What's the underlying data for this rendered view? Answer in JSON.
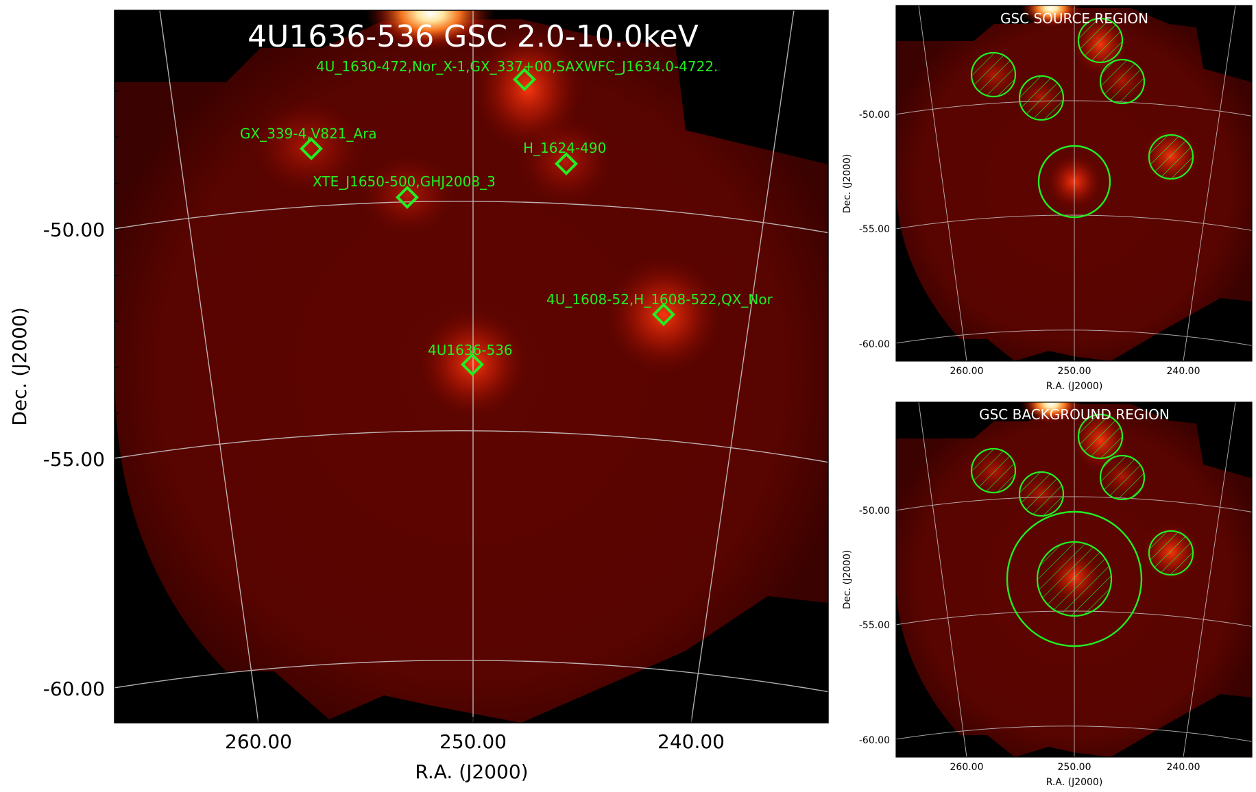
{
  "colors": {
    "background": "#000000",
    "field_fill": "#5a0400",
    "field_edge": "#3a0200",
    "glow_core": "#fff3c0",
    "glow_mid": "#e83a10",
    "marker": "#22ee22",
    "grid": "#cfcfcf",
    "title_text": "#ffffff",
    "axis_text": "#000000"
  },
  "main_panel": {
    "title": "4U1636-536 GSC 2.0-10.0keV",
    "xlabel": "R.A. (J2000)",
    "ylabel": "Dec. (J2000)",
    "xticks": [
      "260.00",
      "250.00",
      "240.00"
    ],
    "yticks": [
      "-50.00",
      "-55.00",
      "-60.00"
    ],
    "sources": [
      {
        "label": "4U_1630-472,Nor_X-1,GX_337+00,SAXWFC_J1634.0-4722."
      },
      {
        "label": "GX_339-4,V821_Ara"
      },
      {
        "label": "H_1624-490"
      },
      {
        "label": "XTE_J1650-500,GHJ2008_3"
      },
      {
        "label": "4U_1608-52,H_1608-522,QX_Nor"
      },
      {
        "label": "4U1636-536"
      }
    ]
  },
  "source_panel": {
    "title": "GSC SOURCE REGION",
    "xlabel": "R.A. (J2000)",
    "ylabel": "Dec. (J2000)",
    "xticks": [
      "260.00",
      "250.00",
      "240.00"
    ],
    "yticks": [
      "-50.00",
      "-55.00",
      "-60.00"
    ]
  },
  "background_panel": {
    "title": "GSC BACKGROUND REGION",
    "xlabel": "R.A. (J2000)",
    "ylabel": "Dec. (J2000)",
    "xticks": [
      "260.00",
      "250.00",
      "240.00"
    ],
    "yticks": [
      "-50.00",
      "-55.00",
      "-60.00"
    ]
  }
}
